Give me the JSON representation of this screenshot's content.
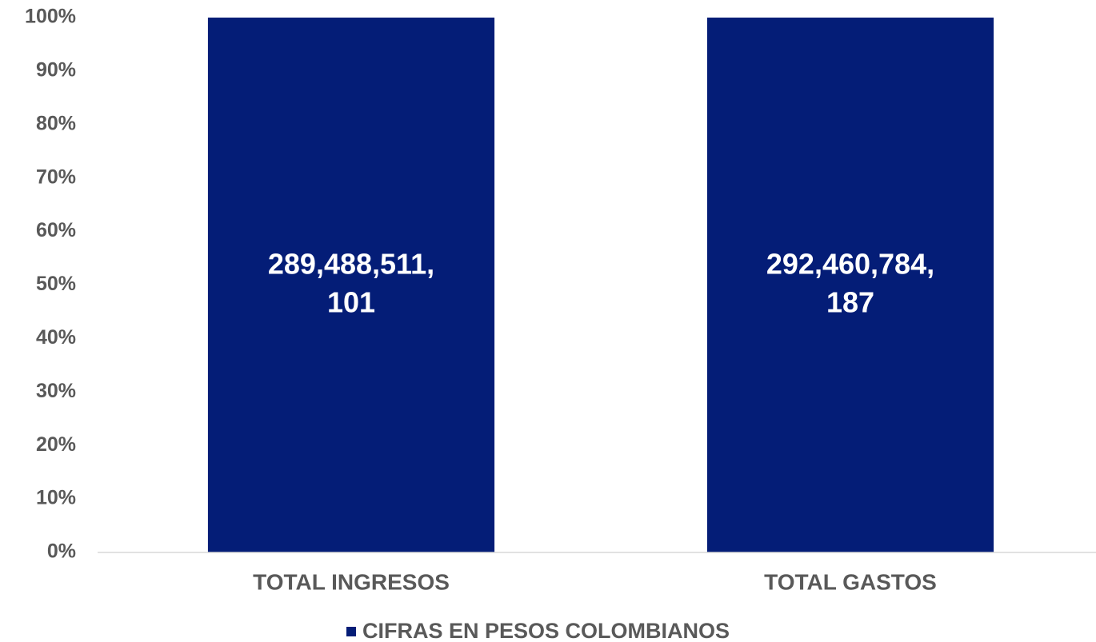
{
  "chart_data": {
    "type": "bar",
    "stack": "percent",
    "categories": [
      "TOTAL INGRESOS",
      "TOTAL GASTOS"
    ],
    "series": [
      {
        "name": "CIFRAS EN PESOS COLOMBIANOS",
        "color": "#041d77",
        "values": [
          289488511101,
          292460784187
        ],
        "value_labels": [
          "289,488,511,101",
          "292,460,784,187"
        ]
      }
    ],
    "ylim": [
      0,
      100
    ],
    "yticks": [
      {
        "value": 0,
        "label": "0%"
      },
      {
        "value": 10,
        "label": "10%"
      },
      {
        "value": 20,
        "label": "20%"
      },
      {
        "value": 30,
        "label": "30%"
      },
      {
        "value": 40,
        "label": "40%"
      },
      {
        "value": 50,
        "label": "50%"
      },
      {
        "value": 60,
        "label": "60%"
      },
      {
        "value": 70,
        "label": "70%"
      },
      {
        "value": 80,
        "label": "80%"
      },
      {
        "value": 90,
        "label": "90%"
      },
      {
        "value": 100,
        "label": "100%"
      }
    ],
    "grid": false,
    "legend": "bottom"
  }
}
